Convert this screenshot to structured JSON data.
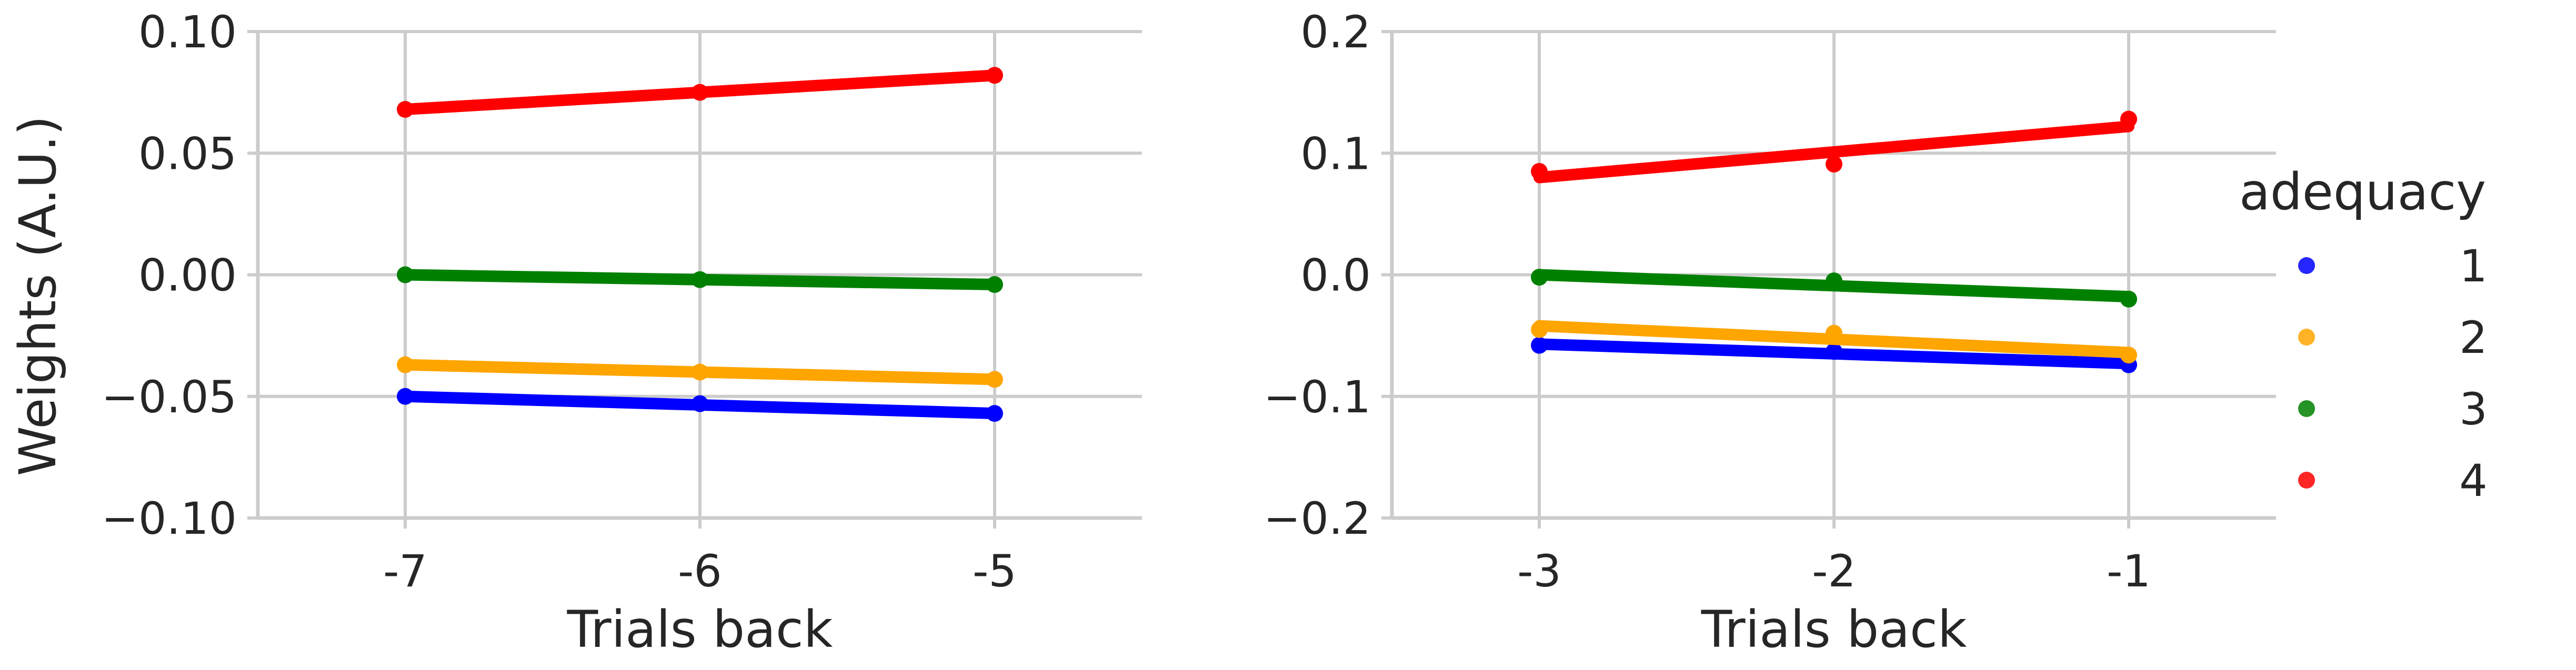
{
  "chart_data": [
    {
      "type": "scatter",
      "x": [
        -7,
        -6,
        -5
      ],
      "xticks": [
        "-7",
        "-6",
        "-5"
      ],
      "xlim": [
        -7.5,
        -4.5
      ],
      "ylim": [
        -0.1,
        0.1
      ],
      "yticks": [
        "0.10",
        "0.05",
        "0.00",
        "−0.05",
        "−0.10"
      ],
      "ytick_values": [
        0.1,
        0.05,
        0.0,
        -0.05,
        -0.1
      ],
      "xlabel": "Trials back",
      "ylabel": "Weights (A.U.)",
      "grid": true,
      "series": [
        {
          "name": "1",
          "color": "#0000ff",
          "values": [
            -0.05,
            -0.053,
            -0.057
          ],
          "fit": [
            -0.05,
            -0.0535,
            -0.057
          ]
        },
        {
          "name": "2",
          "color": "#ffa500",
          "values": [
            -0.037,
            -0.04,
            -0.043
          ],
          "fit": [
            -0.037,
            -0.04,
            -0.043
          ]
        },
        {
          "name": "3",
          "color": "#008000",
          "values": [
            0.0,
            -0.002,
            -0.004
          ],
          "fit": [
            0.0,
            -0.002,
            -0.004
          ]
        },
        {
          "name": "4",
          "color": "#ff0000",
          "values": [
            0.068,
            0.075,
            0.082
          ],
          "fit": [
            0.068,
            0.075,
            0.082
          ]
        }
      ]
    },
    {
      "type": "scatter",
      "x": [
        -3,
        -2,
        -1
      ],
      "xticks": [
        "-3",
        "-2",
        "-1"
      ],
      "xlim": [
        -3.5,
        -0.5
      ],
      "ylim": [
        -0.2,
        0.2
      ],
      "yticks": [
        "0.2",
        "0.1",
        "0.0",
        "−0.1",
        "−0.2"
      ],
      "ytick_values": [
        0.2,
        0.1,
        0.0,
        -0.1,
        -0.2
      ],
      "xlabel": "Trials back",
      "ylabel": "",
      "grid": true,
      "series": [
        {
          "name": "1",
          "color": "#0000ff",
          "values": [
            -0.058,
            -0.063,
            -0.074
          ],
          "fit": [
            -0.057,
            -0.065,
            -0.073
          ]
        },
        {
          "name": "2",
          "color": "#ffa500",
          "values": [
            -0.045,
            -0.048,
            -0.066
          ],
          "fit": [
            -0.042,
            -0.053,
            -0.064
          ]
        },
        {
          "name": "3",
          "color": "#008000",
          "values": [
            -0.002,
            -0.005,
            -0.02
          ],
          "fit": [
            0.0,
            -0.009,
            -0.018
          ]
        },
        {
          "name": "4",
          "color": "#ff0000",
          "values": [
            0.085,
            0.091,
            0.128
          ],
          "fit": [
            0.08,
            0.101,
            0.122
          ]
        }
      ]
    }
  ],
  "legend": {
    "title": "adequacy",
    "placement": "right",
    "items": [
      {
        "label": "1",
        "color": "#0000ff"
      },
      {
        "label": "2",
        "color": "#ffa500"
      },
      {
        "label": "3",
        "color": "#008000"
      },
      {
        "label": "4",
        "color": "#ff0000"
      }
    ]
  }
}
